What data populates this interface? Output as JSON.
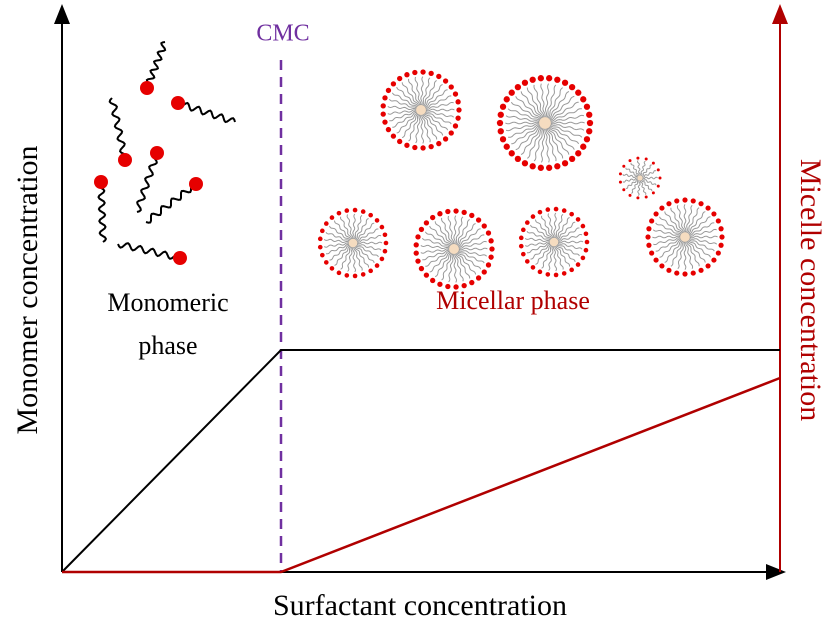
{
  "labels": {
    "cmc": "CMC",
    "y_left": "Monomer concentration",
    "y_right": "Micelle concentration",
    "x": "Surfactant concentration",
    "monomeric_phase": [
      "Monomeric",
      "phase"
    ],
    "micellar_phase": "Micellar phase"
  }
}
